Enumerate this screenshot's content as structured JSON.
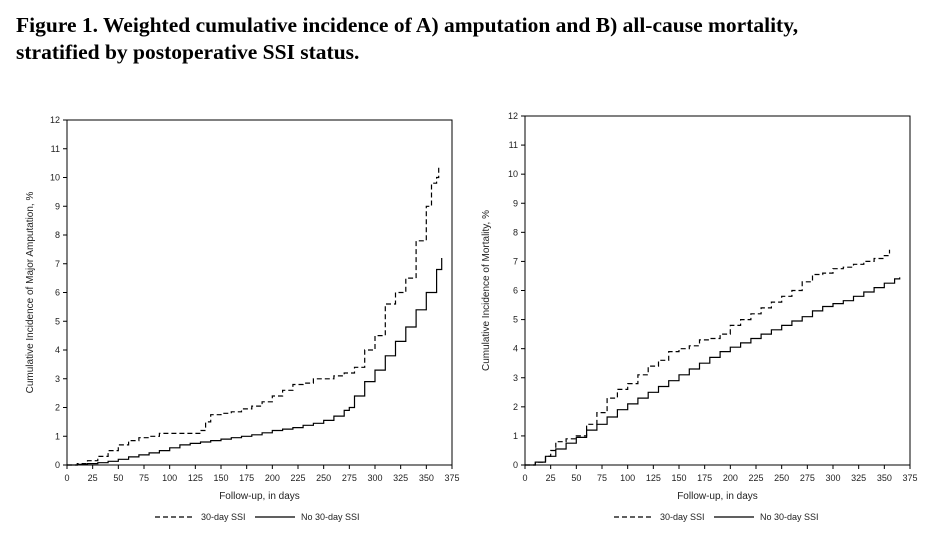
{
  "caption": {
    "line1": "Figure 1. Weighted cumulative incidence of A) amputation and B) all-cause mortality,",
    "line2": "stratified by postoperative SSI status."
  },
  "chart_data": [
    {
      "type": "line",
      "panel": "A",
      "xlabel": "Follow-up, in days",
      "ylabel": "Cumulative Incidence of Major Amputation, %",
      "xlim": [
        0,
        375
      ],
      "ylim": [
        0,
        12
      ],
      "xticks": [
        0,
        25,
        50,
        75,
        100,
        125,
        150,
        175,
        200,
        225,
        250,
        275,
        300,
        325,
        350,
        375
      ],
      "yticks": [
        0,
        1,
        2,
        3,
        4,
        5,
        6,
        7,
        8,
        9,
        10,
        11,
        12
      ],
      "grid": false,
      "legend_position": "bottom",
      "series": [
        {
          "name": "30-day SSI",
          "style": "dashed",
          "color": "#000000",
          "x": [
            0,
            10,
            20,
            30,
            40,
            50,
            60,
            70,
            80,
            90,
            100,
            110,
            120,
            130,
            135,
            140,
            150,
            160,
            170,
            180,
            190,
            200,
            210,
            220,
            230,
            240,
            250,
            260,
            270,
            280,
            290,
            300,
            310,
            320,
            330,
            340,
            350,
            355,
            360,
            362
          ],
          "y": [
            0,
            0.05,
            0.15,
            0.3,
            0.5,
            0.7,
            0.85,
            0.95,
            1.0,
            1.1,
            1.1,
            1.1,
            1.1,
            1.2,
            1.5,
            1.75,
            1.8,
            1.85,
            1.95,
            2.05,
            2.2,
            2.4,
            2.6,
            2.8,
            2.85,
            3.0,
            3.0,
            3.1,
            3.2,
            3.4,
            4.0,
            4.5,
            5.6,
            6.0,
            6.5,
            7.8,
            9.0,
            9.8,
            10.0,
            10.4
          ]
        },
        {
          "name": "No 30-day SSI",
          "style": "solid",
          "color": "#000000",
          "x": [
            0,
            10,
            20,
            30,
            40,
            50,
            60,
            70,
            80,
            90,
            100,
            110,
            120,
            130,
            140,
            150,
            160,
            170,
            180,
            190,
            200,
            210,
            220,
            230,
            240,
            250,
            260,
            270,
            275,
            280,
            290,
            300,
            310,
            320,
            330,
            340,
            350,
            360,
            365
          ],
          "y": [
            0,
            0.02,
            0.05,
            0.08,
            0.13,
            0.2,
            0.28,
            0.35,
            0.42,
            0.5,
            0.6,
            0.7,
            0.75,
            0.8,
            0.85,
            0.9,
            0.95,
            1.0,
            1.05,
            1.12,
            1.2,
            1.25,
            1.3,
            1.38,
            1.45,
            1.55,
            1.7,
            1.9,
            2.0,
            2.4,
            2.9,
            3.3,
            3.8,
            4.3,
            4.8,
            5.4,
            6.0,
            6.8,
            7.2
          ]
        }
      ]
    },
    {
      "type": "line",
      "panel": "B",
      "xlabel": "Follow-up, in days",
      "ylabel": "Cumulative Incidence of Mortality, %",
      "xlim": [
        0,
        375
      ],
      "ylim": [
        0,
        12
      ],
      "xticks": [
        0,
        25,
        50,
        75,
        100,
        125,
        150,
        175,
        200,
        225,
        250,
        275,
        300,
        325,
        350,
        375
      ],
      "yticks": [
        0,
        1,
        2,
        3,
        4,
        5,
        6,
        7,
        8,
        9,
        10,
        11,
        12
      ],
      "grid": false,
      "legend_position": "bottom",
      "series": [
        {
          "name": "30-day SSI",
          "style": "dashed",
          "color": "#000000",
          "x": [
            0,
            10,
            20,
            25,
            30,
            40,
            50,
            60,
            70,
            80,
            90,
            100,
            110,
            120,
            130,
            140,
            150,
            160,
            170,
            180,
            190,
            200,
            210,
            220,
            230,
            240,
            250,
            260,
            270,
            280,
            290,
            300,
            310,
            320,
            330,
            340,
            350,
            355
          ],
          "y": [
            0,
            0.1,
            0.3,
            0.5,
            0.8,
            0.9,
            1.0,
            1.4,
            1.8,
            2.3,
            2.6,
            2.8,
            3.1,
            3.4,
            3.6,
            3.9,
            4.0,
            4.1,
            4.3,
            4.35,
            4.5,
            4.8,
            5.0,
            5.2,
            5.4,
            5.6,
            5.8,
            6.0,
            6.3,
            6.55,
            6.6,
            6.75,
            6.8,
            6.9,
            7.0,
            7.1,
            7.2,
            7.4
          ]
        },
        {
          "name": "No 30-day SSI",
          "style": "solid",
          "color": "#000000",
          "x": [
            0,
            10,
            20,
            30,
            40,
            50,
            60,
            70,
            80,
            90,
            100,
            110,
            120,
            130,
            140,
            150,
            160,
            170,
            180,
            190,
            200,
            210,
            220,
            230,
            240,
            250,
            260,
            270,
            280,
            290,
            300,
            310,
            320,
            330,
            340,
            350,
            360,
            365
          ],
          "y": [
            0,
            0.1,
            0.3,
            0.55,
            0.75,
            0.95,
            1.2,
            1.4,
            1.65,
            1.9,
            2.1,
            2.3,
            2.5,
            2.7,
            2.9,
            3.1,
            3.3,
            3.5,
            3.7,
            3.9,
            4.05,
            4.2,
            4.35,
            4.5,
            4.65,
            4.8,
            4.95,
            5.1,
            5.3,
            5.45,
            5.55,
            5.65,
            5.8,
            5.95,
            6.1,
            6.25,
            6.4,
            6.45
          ]
        }
      ]
    }
  ]
}
